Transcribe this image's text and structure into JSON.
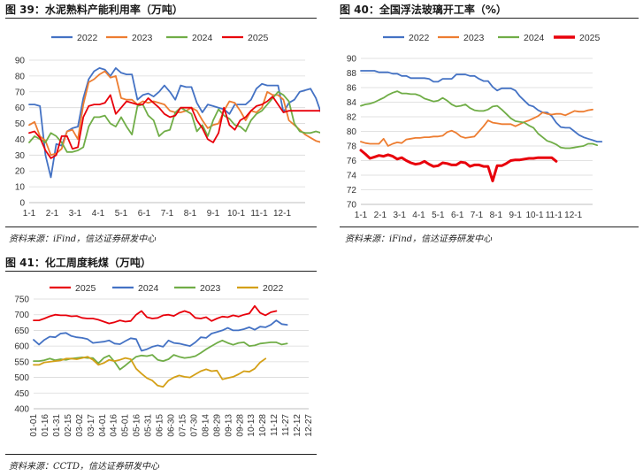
{
  "panels": [
    {
      "title": "图 39：水泥熟料产能利用率（万吨）",
      "source": "资料来源：iFind，信达证券研发中心"
    },
    {
      "title": "图 40：全国浮法玻璃开工率（%）",
      "source": "资料来源：iFind，信达证券研发中心"
    },
    {
      "title": "图 41：化工周度耗煤（万吨）",
      "source": "资料来源：CCTD，信达证券研发中心"
    }
  ],
  "chart_data": [
    {
      "type": "line",
      "ylim": [
        0,
        90
      ],
      "yticks": [
        0,
        10,
        20,
        30,
        40,
        50,
        60,
        70,
        80,
        90
      ],
      "xticks": [
        "1-1",
        "2-1",
        "3-1",
        "4-1",
        "5-1",
        "6-1",
        "7-1",
        "8-1",
        "9-1",
        "10-1",
        "11-1",
        "12-1"
      ],
      "x_count": 52,
      "legend": "top",
      "grid": true,
      "series": [
        {
          "name": "2022",
          "color": "#4472C4",
          "values": [
            62,
            62,
            61,
            30,
            16,
            37,
            36,
            45,
            47,
            48,
            66,
            78,
            83,
            85,
            84,
            80,
            85,
            82,
            81,
            81,
            65,
            68,
            69,
            67,
            70,
            74,
            70,
            65,
            74,
            73,
            73,
            63,
            57,
            62,
            61,
            60,
            59,
            56,
            62,
            62,
            62,
            65,
            72,
            75,
            74,
            74,
            74,
            57,
            63,
            65,
            70,
            71,
            72,
            66,
            56,
            50,
            48,
            49,
            49,
            48,
            48,
            48
          ]
        },
        {
          "name": "2023",
          "color": "#ED7D31",
          "values": [
            49,
            51,
            42,
            39,
            30,
            31,
            34,
            45,
            46,
            40,
            62,
            76,
            78,
            81,
            83,
            79,
            80,
            66,
            65,
            65,
            62,
            64,
            63,
            64,
            63,
            62,
            58,
            57,
            57,
            58,
            60,
            58,
            52,
            47,
            49,
            50,
            58,
            64,
            63,
            58,
            52,
            58,
            57,
            60,
            70,
            68,
            68,
            65,
            52,
            49,
            46,
            43,
            41,
            39,
            38,
            38,
            38,
            38,
            38,
            38,
            38,
            38
          ]
        },
        {
          "name": "2024",
          "color": "#70AD47",
          "values": [
            38,
            42,
            40,
            38,
            44,
            42,
            38,
            32,
            32,
            33,
            35,
            48,
            54,
            54,
            55,
            50,
            48,
            54,
            48,
            43,
            61,
            62,
            55,
            52,
            42,
            45,
            46,
            57,
            60,
            58,
            56,
            45,
            49,
            42,
            52,
            59,
            55,
            53,
            49,
            48,
            45,
            52,
            56,
            58,
            62,
            66,
            70,
            68,
            64,
            50,
            45,
            44,
            44,
            45,
            44,
            44,
            43,
            43,
            43,
            43,
            43,
            43
          ]
        },
        {
          "name": "2025",
          "color": "#E8000B",
          "values": [
            44,
            45,
            41,
            33,
            28,
            30,
            42,
            42,
            34,
            35,
            54,
            61,
            62,
            62,
            63,
            68,
            56,
            60,
            64,
            63,
            62,
            62,
            66,
            63,
            60,
            56,
            54,
            55,
            60,
            60,
            60,
            52,
            47,
            40,
            38,
            44,
            60,
            49,
            46,
            52,
            54,
            58,
            61,
            62,
            64,
            67,
            62,
            57,
            58,
            58,
            58,
            58,
            58,
            58,
            58,
            58,
            58,
            58,
            58,
            58,
            58,
            58
          ]
        }
      ]
    },
    {
      "type": "line",
      "ylim": [
        70,
        90
      ],
      "yticks": [
        70,
        72,
        74,
        76,
        78,
        80,
        82,
        84,
        86,
        88,
        90
      ],
      "xticks": [
        "1-1",
        "2-1",
        "3-1",
        "4-1",
        "5-1",
        "6-1",
        "7-1",
        "8-1",
        "9-1",
        "10-1",
        "11-1",
        "12-1"
      ],
      "x_count": 52,
      "legend": "top",
      "grid": true,
      "series": [
        {
          "name": "2022",
          "color": "#4472C4",
          "values": [
            88.3,
            88.3,
            88.3,
            88.3,
            88.1,
            88.1,
            88.1,
            87.9,
            87.9,
            87.6,
            87.6,
            87.3,
            87.3,
            87.3,
            87.3,
            87.2,
            86.8,
            86.8,
            87.2,
            87.2,
            87.2,
            87.8,
            87.8,
            87.8,
            87.6,
            87.6,
            87.2,
            86.9,
            86.9,
            86.1,
            85.6,
            85.9,
            85.9,
            85.9,
            85.6,
            84.8,
            84.2,
            83.6,
            83.4,
            82.9,
            82.6,
            82.6,
            82.1,
            81.2,
            80.6,
            80.5,
            80.5,
            80.0,
            79.5,
            79.2,
            79.0,
            78.8,
            78.6,
            78.6
          ]
        },
        {
          "name": "2023",
          "color": "#ED7D31",
          "values": [
            78.6,
            78.4,
            78.3,
            78.3,
            78.3,
            79.0,
            78.0,
            78.3,
            78.5,
            78.4,
            78.9,
            79.0,
            79.1,
            79.1,
            79.2,
            79.2,
            79.3,
            79.3,
            79.4,
            79.9,
            80.1,
            79.8,
            79.3,
            79.1,
            79.2,
            79.3,
            80.0,
            80.7,
            81.5,
            81.2,
            81.1,
            81.0,
            81.0,
            81.0,
            80.7,
            81.0,
            81.3,
            81.5,
            81.8,
            82.1,
            82.6,
            82.4,
            82.3,
            82.4,
            82.4,
            82.2,
            82.5,
            82.8,
            82.7,
            82.7,
            82.9,
            83.0
          ]
        },
        {
          "name": "2024",
          "color": "#70AD47",
          "values": [
            83.5,
            83.7,
            83.8,
            84.0,
            84.3,
            84.6,
            85.0,
            85.3,
            85.5,
            85.2,
            85.2,
            85.1,
            85.1,
            84.9,
            84.5,
            84.3,
            84.1,
            84.2,
            84.6,
            84.2,
            83.7,
            83.4,
            83.5,
            83.7,
            83.2,
            82.9,
            82.8,
            82.8,
            83.0,
            83.4,
            83.5,
            83.0,
            82.4,
            81.8,
            81.4,
            81.3,
            81.2,
            80.8,
            80.5,
            79.7,
            79.2,
            78.7,
            78.5,
            78.2,
            77.8,
            77.7,
            77.7,
            77.8,
            77.9,
            78.0,
            78.3,
            78.3,
            78.1
          ]
        },
        {
          "name": "2025",
          "color": "#E8000B",
          "values": [
            77.4,
            76.9,
            76.3,
            76.5,
            76.7,
            76.6,
            76.8,
            76.6,
            76.2,
            76.4,
            76.0,
            75.7,
            75.5,
            75.6,
            75.9,
            75.5,
            75.2,
            75.3,
            75.7,
            75.6,
            75.4,
            75.4,
            75.8,
            75.7,
            75.2,
            75.4,
            75.4,
            75.2,
            75.2,
            73.2,
            75.3,
            75.3,
            75.6,
            76.0,
            76.1,
            76.1,
            76.2,
            76.3,
            76.3,
            76.4,
            76.4,
            76.4,
            76.4,
            75.9
          ]
        }
      ]
    },
    {
      "type": "line",
      "ylim": [
        400,
        750
      ],
      "yticks": [
        400,
        450,
        500,
        550,
        600,
        650,
        700,
        750
      ],
      "xticks": [
        "01-01",
        "01-16",
        "01-31",
        "02-15",
        "03-02",
        "03-17",
        "04-01",
        "04-16",
        "05-01",
        "05-16",
        "05-31",
        "06-15",
        "06-30",
        "07-15",
        "07-30",
        "08-14",
        "08-29",
        "09-13",
        "09-28",
        "10-13",
        "10-28",
        "11-12",
        "11-27",
        "12-12",
        "12-27"
      ],
      "x_count": 52,
      "legend": "top",
      "grid": true,
      "series": [
        {
          "name": "2025",
          "color": "#E8000B",
          "values": [
            682,
            682,
            688,
            695,
            700,
            698,
            698,
            695,
            696,
            690,
            688,
            688,
            684,
            678,
            672,
            676,
            682,
            678,
            680,
            700,
            712,
            692,
            688,
            690,
            698,
            700,
            696,
            706,
            712,
            706,
            690,
            688,
            692,
            680,
            688,
            694,
            692,
            698,
            694,
            700,
            704,
            728,
            706,
            698,
            708,
            712
          ]
        },
        {
          "name": "2024",
          "color": "#4472C4",
          "values": [
            620,
            605,
            620,
            630,
            628,
            640,
            642,
            632,
            628,
            626,
            622,
            610,
            612,
            614,
            618,
            608,
            606,
            616,
            625,
            622,
            585,
            590,
            598,
            602,
            598,
            618,
            610,
            608,
            604,
            600,
            612,
            628,
            626,
            640,
            645,
            650,
            658,
            650,
            650,
            654,
            660,
            652,
            662,
            660,
            668,
            682,
            670,
            668
          ]
        },
        {
          "name": "2023",
          "color": "#70AD47",
          "values": [
            552,
            552,
            555,
            560,
            555,
            558,
            556,
            560,
            562,
            564,
            562,
            562,
            545,
            562,
            570,
            550,
            525,
            538,
            552,
            566,
            570,
            568,
            572,
            556,
            552,
            558,
            572,
            566,
            562,
            564,
            568,
            578,
            590,
            600,
            610,
            618,
            610,
            604,
            610,
            612,
            600,
            602,
            608,
            610,
            612,
            612,
            605,
            608
          ]
        },
        {
          "name": "2022",
          "color": "#D4A017",
          "values": [
            540,
            540,
            548,
            550,
            552,
            554,
            560,
            560,
            558,
            562,
            566,
            556,
            540,
            546,
            556,
            552,
            556,
            562,
            558,
            528,
            512,
            498,
            490,
            474,
            470,
            490,
            500,
            506,
            502,
            500,
            510,
            520,
            526,
            520,
            522,
            494,
            498,
            502,
            510,
            520,
            518,
            528,
            548,
            560
          ]
        }
      ]
    }
  ]
}
